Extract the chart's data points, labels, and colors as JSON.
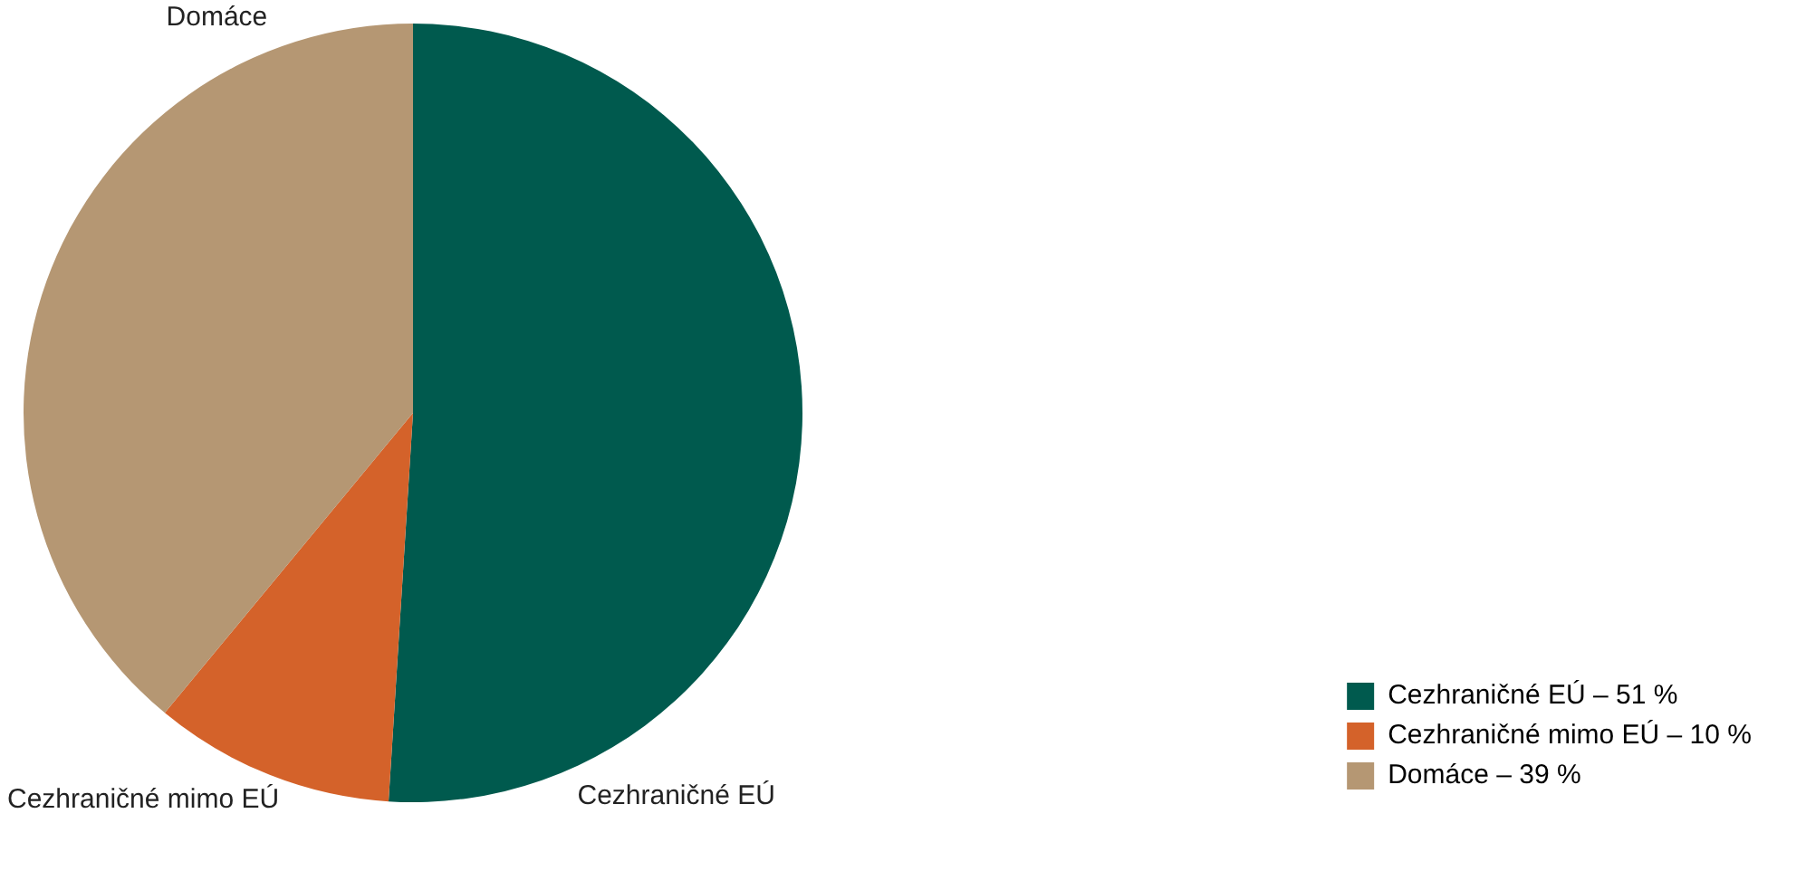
{
  "chart_data": {
    "type": "pie",
    "categories": [
      "Cezhraničné EÚ – 51 %",
      "Cezhraničné mimo EÚ – 10 %",
      "Domáce – 39 %"
    ],
    "values": [
      51,
      10,
      39
    ],
    "colors": [
      "#005a4e",
      "#d4622a",
      "#b59773"
    ],
    "annotations": [
      "Cezhraničné EÚ",
      "Cezhraničné mimo EÚ",
      "Domáce"
    ],
    "legend": "bottom right"
  }
}
